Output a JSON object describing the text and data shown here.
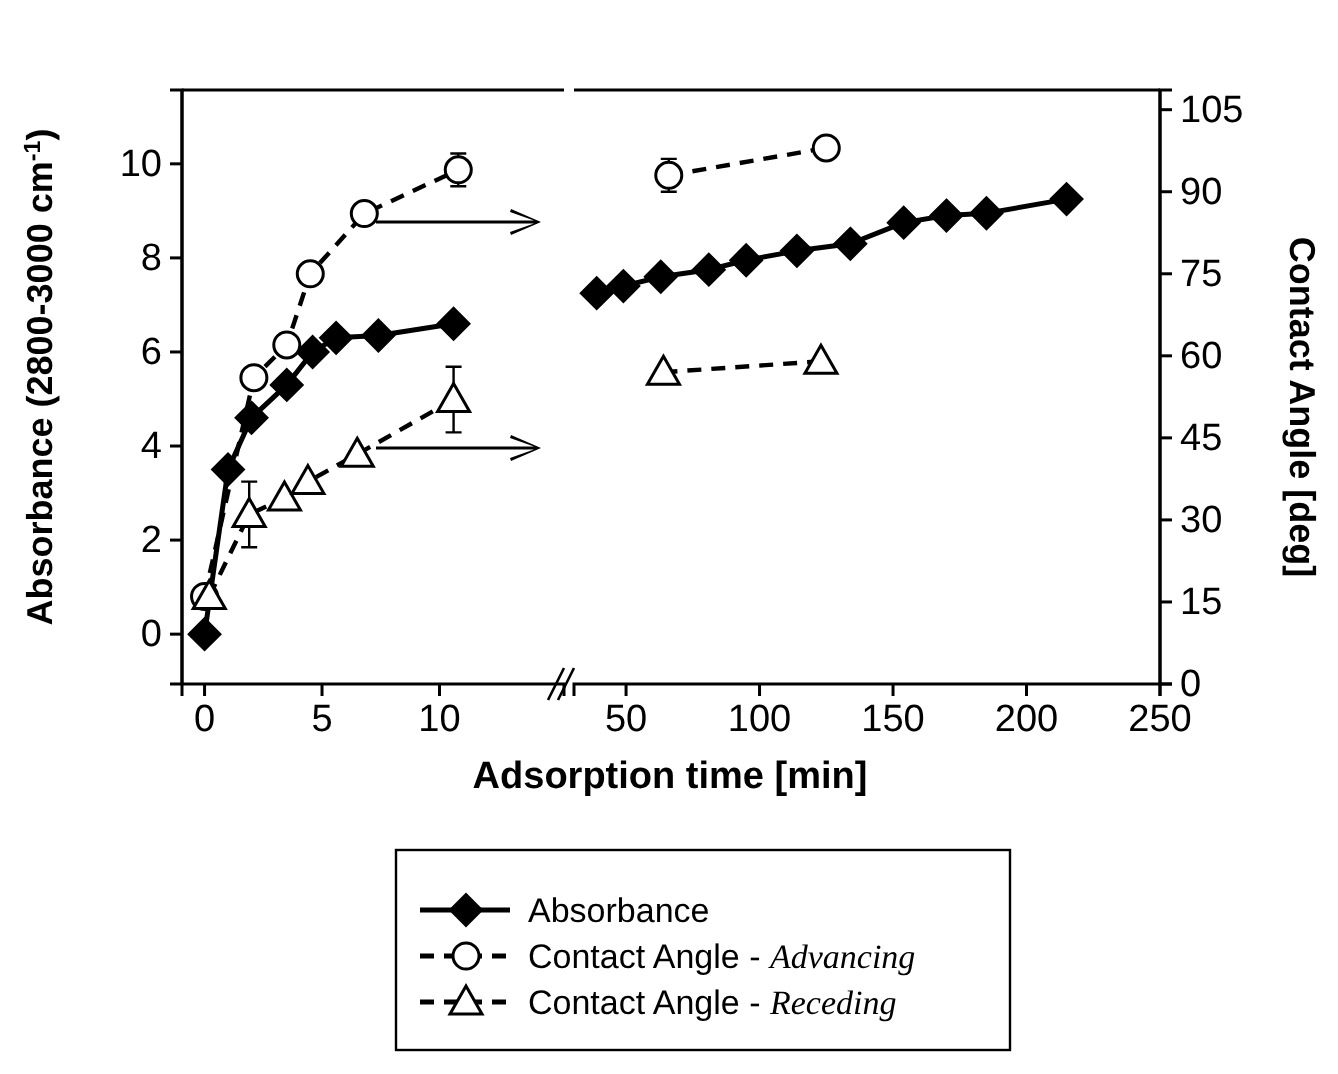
{
  "chart_data": [
    {
      "type": "line",
      "ylabel": "Absorbance (2800-3000 cm$^{-1}$)",
      "xlabel": "Adsorption time [min]",
      "xlim": [
        -0.96,
        15.3
      ],
      "xticks": [
        0,
        5,
        10
      ],
      "ylim": [
        -1.06,
        11.57
      ],
      "yticks": [
        0,
        2,
        4,
        6,
        8,
        10
      ],
      "y2lim": [
        0,
        108.6
      ],
      "legend": "bottom",
      "series": [
        {
          "name": "Absorbance",
          "color": "#000000",
          "marker": "diamond",
          "line_style": "solid",
          "x": [
            0,
            1,
            2,
            3.5,
            4.6,
            5.6,
            7.4,
            10.6
          ],
          "values": [
            0,
            3.5,
            4.6,
            5.3,
            6.0,
            6.3,
            6.35,
            6.6
          ]
        },
        {
          "name": "Contact Angle - Advancing",
          "color": "#000000",
          "marker": "circle",
          "line_style": "dashed",
          "axis": "y2",
          "x": [
            0,
            2.1,
            3.5,
            4.5,
            6.8,
            10.8
          ],
          "values": [
            16,
            56,
            62,
            75,
            86,
            94
          ],
          "errors": [
            null,
            null,
            2,
            2,
            null,
            3
          ]
        },
        {
          "name": "Contact Angle - Receding",
          "color": "#000000",
          "marker": "triangle",
          "line_style": "dashed",
          "axis": "y2",
          "x": [
            0.2,
            1.9,
            3.4,
            4.4,
            6.5,
            10.6
          ],
          "values": [
            16,
            31,
            34,
            37,
            42,
            52
          ],
          "errors": [
            null,
            6,
            null,
            null,
            null,
            6
          ]
        }
      ]
    },
    {
      "type": "line",
      "y2label": "Contact Angle [deg]",
      "xlim": [
        30.5,
        250
      ],
      "xticks": [
        50,
        100,
        150,
        200,
        250
      ],
      "ylim": [
        -1.06,
        11.57
      ],
      "y2lim": [
        0,
        108.6
      ],
      "y2ticks": [
        0,
        15,
        30,
        45,
        60,
        75,
        90,
        105
      ],
      "series": [
        {
          "color": "#000000",
          "marker": "diamond",
          "line_style": "solid",
          "x": [
            39,
            49,
            63,
            81,
            95,
            114,
            134,
            154,
            170,
            185,
            215
          ],
          "values": [
            7.25,
            7.4,
            7.6,
            7.75,
            7.95,
            8.15,
            8.3,
            8.75,
            8.9,
            8.95,
            9.25
          ]
        },
        {
          "color": "#000000",
          "marker": "circle",
          "line_style": "dashed",
          "axis": "y2",
          "x": [
            66,
            125
          ],
          "values": [
            93,
            98
          ],
          "errors": [
            3,
            null
          ]
        },
        {
          "color": "#000000",
          "marker": "triangle",
          "line_style": "dashed",
          "axis": "y2",
          "x": [
            64,
            123
          ],
          "values": [
            57,
            59
          ]
        }
      ]
    }
  ]
}
